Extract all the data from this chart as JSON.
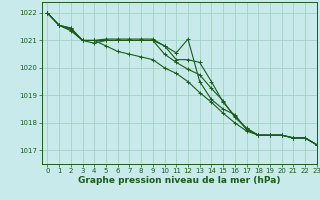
{
  "background_color": "#c8eaea",
  "plot_bg_color": "#c8eaea",
  "grid_color": "#99ccbb",
  "line_color": "#1a5c1a",
  "xlabel": "Graphe pression niveau de la mer (hPa)",
  "xlabel_fontsize": 6.5,
  "xlim": [
    -0.5,
    23
  ],
  "ylim": [
    1016.5,
    1022.4
  ],
  "yticks": [
    1017,
    1018,
    1019,
    1020,
    1021,
    1022
  ],
  "xticks": [
    0,
    1,
    2,
    3,
    4,
    5,
    6,
    7,
    8,
    9,
    10,
    11,
    12,
    13,
    14,
    15,
    16,
    17,
    18,
    19,
    20,
    21,
    22,
    23
  ],
  "series": [
    [
      1022.0,
      1021.55,
      1021.45,
      1021.0,
      1021.0,
      1021.05,
      1021.05,
      1021.05,
      1021.05,
      1021.05,
      1020.8,
      1020.55,
      1021.05,
      1019.5,
      1018.85,
      1018.5,
      1018.3,
      1017.75,
      1017.55,
      1017.55,
      1017.55,
      1017.45,
      1017.45,
      1017.2
    ],
    [
      1022.0,
      1021.55,
      1021.45,
      1021.0,
      1020.9,
      1021.0,
      1021.0,
      1021.0,
      1021.0,
      1021.0,
      1020.8,
      1020.3,
      1020.3,
      1020.2,
      1019.5,
      1018.75,
      1018.25,
      1017.8,
      1017.55,
      1017.55,
      1017.55,
      1017.45,
      1017.45,
      1017.2
    ],
    [
      1022.0,
      1021.55,
      1021.4,
      1021.0,
      1021.0,
      1021.0,
      1021.0,
      1021.0,
      1021.0,
      1021.0,
      1020.5,
      1020.2,
      1019.95,
      1019.75,
      1019.25,
      1018.8,
      1018.2,
      1017.8,
      1017.55,
      1017.55,
      1017.55,
      1017.45,
      1017.45,
      1017.2
    ],
    [
      1022.0,
      1021.55,
      1021.35,
      1021.0,
      1021.0,
      1020.8,
      1020.6,
      1020.5,
      1020.4,
      1020.3,
      1020.0,
      1019.8,
      1019.5,
      1019.1,
      1018.75,
      1018.35,
      1018.0,
      1017.7,
      1017.55,
      1017.55,
      1017.55,
      1017.45,
      1017.45,
      1017.2
    ]
  ],
  "marker": "+",
  "marker_size": 3,
  "linewidth": 0.8,
  "tick_fontsize": 5,
  "tick_color": "#1a5c1a"
}
